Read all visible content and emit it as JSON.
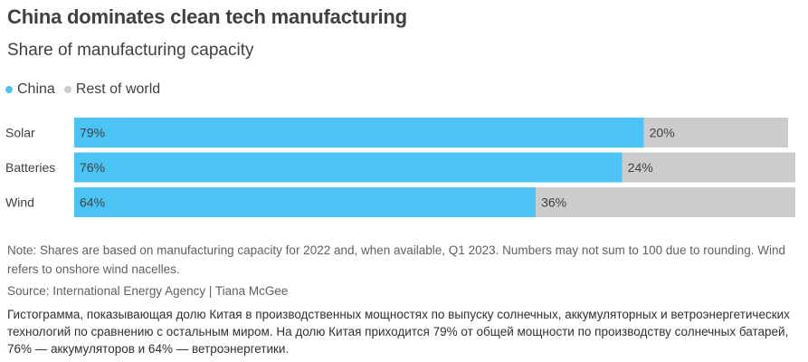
{
  "title": "China dominates clean tech manufacturing",
  "subtitle": "Share of manufacturing capacity",
  "legend": {
    "china": "China",
    "rest": "Rest of world"
  },
  "colors": {
    "china": "#4cc3f5",
    "rest": "#cccccc",
    "text": "#404040"
  },
  "chart_data": {
    "type": "bar",
    "orientation": "horizontal",
    "stacked": true,
    "categories": [
      "Solar",
      "Batteries",
      "Wind"
    ],
    "series": [
      {
        "name": "China",
        "values": [
          79,
          76,
          64
        ],
        "labels": [
          "79%",
          "76%",
          "64%"
        ]
      },
      {
        "name": "Rest of world",
        "values": [
          20,
          24,
          36
        ],
        "labels": [
          "20%",
          "24%",
          "36%"
        ]
      }
    ],
    "xlim": [
      0,
      100
    ],
    "title": "China dominates clean tech manufacturing",
    "subtitle": "Share of manufacturing capacity"
  },
  "note": "Note: Shares are based on manufacturing capacity for 2022 and, when available, Q1 2023. Numbers may not sum to 100 due to rounding. Wind refers to onshore wind nacelles.",
  "source": "Source: International Energy Agency | Tiana McGee",
  "description": "Гистограмма, показывающая долю Китая в производственных мощностях по выпуску солнечных, аккумуляторных и ветроэнергетических технологий по сравнению с остальным миром. На долю Китая приходится 79% от общей мощности по производству солнечных батарей, 76% — аккумуляторов и 64% — ветроэнергетики."
}
